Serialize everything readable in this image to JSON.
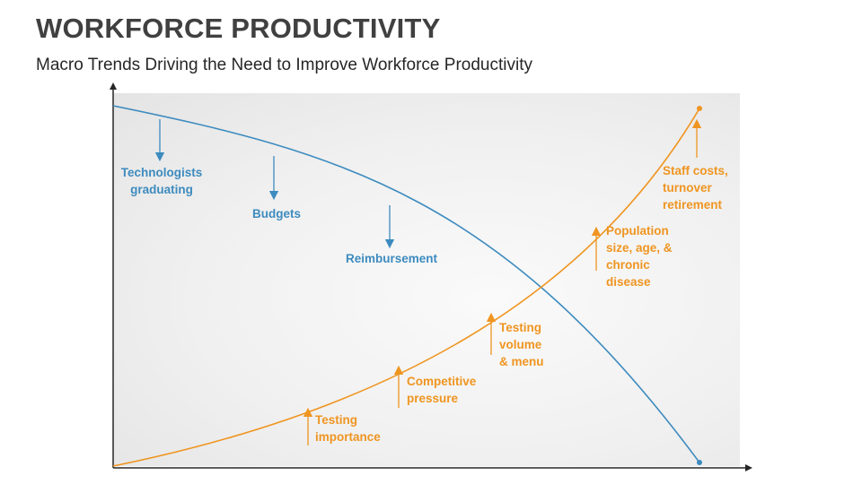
{
  "title": "WORKFORCE PRODUCTIVITY",
  "subtitle": "Macro Trends Driving the Need to Improve Workforce Productivity",
  "colors": {
    "declining": "#3d8bbf",
    "rising": "#ef9521",
    "axis": "#262626"
  },
  "declining_factors": [
    "Technologists\ngraduating",
    "Budgets",
    "Reimbursement"
  ],
  "rising_factors": [
    "Testing\nimportance",
    "Competitive\npressure",
    "Testing\nvolume\n& menu",
    "Population\nsize, age, &\nchronic\ndisease",
    "Staff costs,\nturnover\nretirement"
  ]
}
